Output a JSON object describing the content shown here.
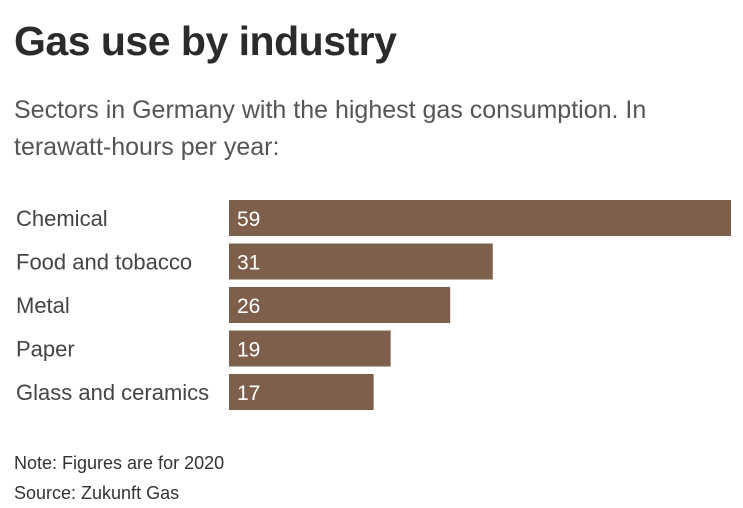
{
  "colors": {
    "bar": "#7d5f4b"
  },
  "chart_data": {
    "type": "bar",
    "orientation": "horizontal",
    "title": "Gas use by industry",
    "subtitle": "Sectors in Germany with the highest gas consumption. In terawatt-hours per year:",
    "categories": [
      "Chemical",
      "Food and tobacco",
      "Metal",
      "Paper",
      "Glass and ceramics"
    ],
    "values": [
      59,
      31,
      26,
      19,
      17
    ],
    "value_labels": [
      "59",
      "31",
      "26",
      "19",
      "17"
    ],
    "xlim": [
      0,
      59
    ],
    "unit": "terawatt-hours per year",
    "grid": false,
    "legend": "none"
  },
  "footer": {
    "note": "Note: Figures are for 2020",
    "source": "Source: Zukunft Gas"
  }
}
